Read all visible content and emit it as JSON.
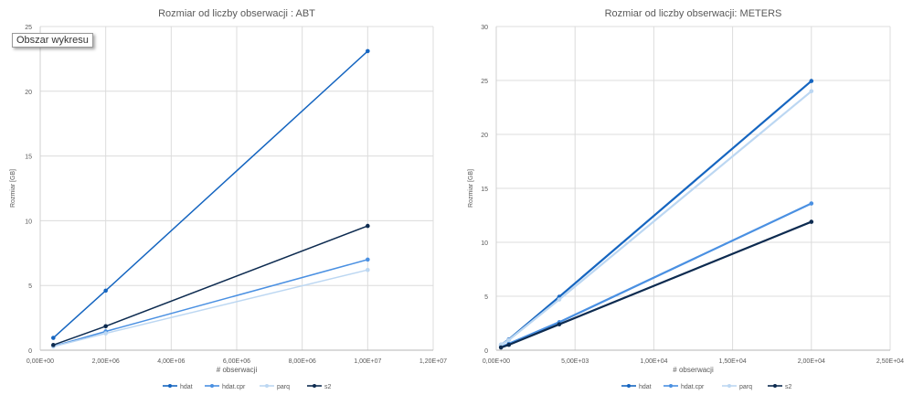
{
  "tooltip": "Obszar wykresu",
  "chart_data": [
    {
      "type": "line",
      "title": "Rozmiar od liczby obserwacji : ABT",
      "xlabel": "# obserwacji",
      "ylabel": "Rozmiar [GB]",
      "xlim": [
        0,
        12000000
      ],
      "ylim": [
        0,
        25
      ],
      "xticks": [
        0,
        2000000,
        4000000,
        6000000,
        8000000,
        10000000,
        12000000
      ],
      "xtick_labels": [
        "0,00E+00",
        "2,00E+06",
        "4,00E+06",
        "6,00E+06",
        "8,00E+06",
        "1,00E+07",
        "1,20E+07"
      ],
      "yticks": [
        0,
        5,
        10,
        15,
        20,
        25
      ],
      "ytick_labels": [
        "0",
        "5",
        "10",
        "15",
        "20",
        "25"
      ],
      "grid": true,
      "legend": "bottom",
      "x": [
        400000,
        2000000,
        10000000
      ],
      "series": [
        {
          "name": "hdat",
          "color": "#1565c0",
          "values": [
            0.95,
            4.6,
            23.1
          ]
        },
        {
          "name": "hdat.cpr",
          "color": "#4a90e2",
          "values": [
            0.3,
            1.45,
            7.0
          ]
        },
        {
          "name": "parq",
          "color": "#bcd7f2",
          "values": [
            0.28,
            1.3,
            6.2
          ]
        },
        {
          "name": "s2",
          "color": "#0d2b50",
          "values": [
            0.4,
            1.85,
            9.6
          ]
        }
      ]
    },
    {
      "type": "line",
      "title": "Rozmiar od liczby obserwacji: METERS",
      "xlabel": "# obserwacji",
      "ylabel": "Rozmiar [GB]",
      "xlim": [
        0,
        25000
      ],
      "ylim": [
        0,
        30
      ],
      "xticks": [
        0,
        5000,
        10000,
        15000,
        20000,
        25000
      ],
      "xtick_labels": [
        "0,00E+00",
        "5,00E+03",
        "1,00E+04",
        "1,50E+04",
        "2,00E+04",
        "2,50E+04"
      ],
      "yticks": [
        0,
        5,
        10,
        15,
        20,
        25,
        30
      ],
      "ytick_labels": [
        "0",
        "5",
        "10",
        "15",
        "20",
        "25",
        "30"
      ],
      "grid": true,
      "legend": "bottom",
      "x": [
        300,
        800,
        4000,
        20000
      ],
      "series": [
        {
          "name": "hdat",
          "color": "#1565c0",
          "values": [
            0.5,
            1.0,
            4.95,
            24.95
          ]
        },
        {
          "name": "hdat.cpr",
          "color": "#4a90e2",
          "values": [
            0.3,
            0.6,
            2.6,
            13.6
          ]
        },
        {
          "name": "parq",
          "color": "#bcd7f2",
          "values": [
            0.5,
            0.95,
            4.7,
            24.0
          ]
        },
        {
          "name": "s2",
          "color": "#0d2b50",
          "values": [
            0.25,
            0.5,
            2.4,
            11.9
          ]
        }
      ]
    }
  ]
}
